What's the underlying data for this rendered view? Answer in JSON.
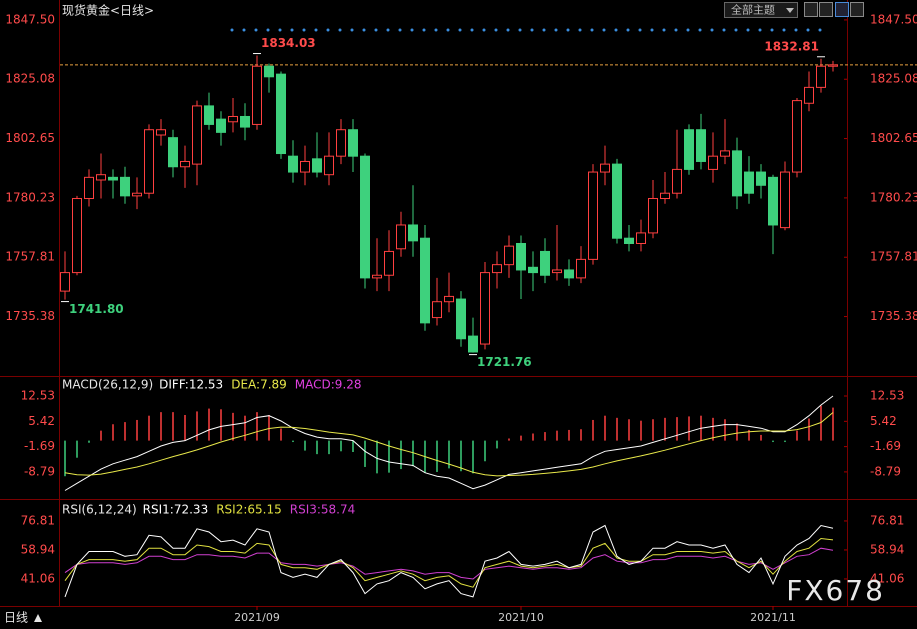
{
  "header": {
    "title": "现货黄金<日线>",
    "theme_button": "全部主题"
  },
  "footer": {
    "period": "日线",
    "watermark": "FX678"
  },
  "chart_data": [
    {
      "type": "candlestick",
      "categories": [
        null,
        null,
        null,
        null,
        null,
        null,
        null,
        null,
        null,
        null,
        null,
        null,
        null,
        null,
        null,
        null,
        "2021/09",
        null,
        null,
        null,
        null,
        null,
        null,
        null,
        null,
        null,
        null,
        null,
        null,
        null,
        null,
        null,
        null,
        null,
        null,
        null,
        null,
        null,
        "2021/10",
        null,
        null,
        null,
        null,
        null,
        null,
        null,
        null,
        null,
        null,
        null,
        null,
        null,
        null,
        null,
        null,
        null,
        null,
        null,
        null,
        "2021/11",
        null,
        null,
        null,
        null,
        null
      ],
      "open": [
        1745,
        1752,
        1780,
        1787,
        1788,
        1788,
        1781,
        1782,
        1804,
        1803,
        1792,
        1793,
        1815,
        1810,
        1809,
        1811,
        1808,
        1830,
        1827,
        1796,
        1790,
        1795,
        1789,
        1796,
        1806,
        1796,
        1750,
        1751,
        1761,
        1770,
        1765,
        1735,
        1741,
        1742,
        1728,
        1725,
        1752,
        1755,
        1763,
        1754,
        1760,
        1752,
        1753,
        1750,
        1757,
        1790,
        1793,
        1765,
        1763,
        1767,
        1780,
        1782,
        1806,
        1806,
        1791,
        1796,
        1798,
        1790,
        1790,
        1788,
        1769,
        1790,
        1816,
        1822,
        1830
      ],
      "high": [
        1760,
        1781,
        1791,
        1797,
        1791,
        1792,
        1788,
        1808,
        1810,
        1806,
        1800,
        1817,
        1820,
        1813,
        1818,
        1816,
        1834.03,
        1831,
        1828,
        1802,
        1800,
        1805,
        1805,
        1810,
        1810,
        1797,
        1765,
        1768,
        1775,
        1785,
        1770,
        1750,
        1752,
        1745,
        1735,
        1756,
        1760,
        1766,
        1766,
        1760,
        1765,
        1770,
        1757,
        1762,
        1793,
        1800,
        1795,
        1770,
        1772,
        1787,
        1790,
        1806,
        1808,
        1812,
        1805,
        1810,
        1803,
        1796,
        1793,
        1789,
        1794,
        1818,
        1828,
        1832.81,
        1832
      ],
      "low": [
        1741.8,
        1751,
        1777,
        1780,
        1780,
        1778,
        1776,
        1780,
        1800,
        1788,
        1784,
        1785,
        1806,
        1800,
        1805,
        1802,
        1806,
        1820,
        1795,
        1786,
        1785,
        1788,
        1785,
        1793,
        1790,
        1746,
        1745,
        1745,
        1758,
        1758,
        1730,
        1732,
        1737,
        1724,
        1721.76,
        1723,
        1746,
        1750,
        1742,
        1745,
        1748,
        1749,
        1747,
        1748,
        1755,
        1785,
        1763,
        1760,
        1760,
        1765,
        1778,
        1780,
        1789,
        1791,
        1786,
        1793,
        1776,
        1778,
        1780,
        1759,
        1768,
        1788,
        1813,
        1820,
        1828
      ],
      "close": [
        1752,
        1780,
        1788,
        1789,
        1787,
        1781,
        1782,
        1806,
        1806,
        1792,
        1794,
        1815,
        1808,
        1805,
        1811,
        1807,
        1830,
        1826,
        1797,
        1790,
        1794,
        1790,
        1796,
        1806,
        1796,
        1750,
        1751,
        1760,
        1770,
        1764,
        1733,
        1741,
        1743,
        1727,
        1722,
        1752,
        1755,
        1762,
        1753,
        1752,
        1751,
        1753,
        1750,
        1757,
        1790,
        1793,
        1765,
        1763,
        1767,
        1780,
        1782,
        1791,
        1791,
        1794,
        1796,
        1798,
        1781,
        1782,
        1785,
        1770,
        1790,
        1817,
        1822,
        1830,
        1830.5
      ],
      "up_color": "#ff4040",
      "down_color": "#3ed17d",
      "last_line_color": "#e8a040",
      "ylim": [
        1713.3,
        1852
      ],
      "yticks": [
        {
          "value": 1847.5,
          "label": "1847.50"
        },
        1825.08,
        1802.65,
        1780.23,
        1757.81,
        1735.38
      ],
      "annotations": [
        "1834.03",
        "1832.81",
        "1741.80",
        "1721.76"
      ]
    },
    {
      "type": "macd",
      "title": "MACD(26,12,9)",
      "series": [
        {
          "name": "DIFF:12.53",
          "color": "#ffffff",
          "values": [
            -14,
            -12,
            -10,
            -8,
            -6.5,
            -5.5,
            -4.5,
            -3,
            -1.5,
            -0.5,
            0,
            1.5,
            3,
            4,
            4.5,
            5,
            6.5,
            7,
            5.5,
            3.5,
            2,
            1,
            0.5,
            0.5,
            0,
            -3,
            -5,
            -6,
            -6.5,
            -7,
            -9,
            -10,
            -10.5,
            -12,
            -13.5,
            -12.5,
            -11,
            -9.5,
            -9,
            -8.5,
            -8,
            -7.5,
            -7,
            -6.5,
            -4.5,
            -3,
            -2.5,
            -2,
            -1.5,
            -0.5,
            0.5,
            1.5,
            2.5,
            3.5,
            4,
            4.5,
            4.5,
            4,
            3.5,
            2.5,
            2.5,
            4.5,
            7,
            10,
            12.53
          ]
        },
        {
          "name": "DEA:7.89",
          "color": "#e8e84a",
          "values": [
            -9,
            -9.6,
            -9.7,
            -9.4,
            -8.8,
            -8.1,
            -7.4,
            -6.5,
            -5.5,
            -4.5,
            -3.6,
            -2.6,
            -1.5,
            -0.4,
            0.6,
            1.5,
            2.5,
            3.4,
            3.8,
            3.7,
            3.4,
            2.9,
            2.4,
            2,
            1.6,
            0.7,
            -0.4,
            -1.5,
            -2.5,
            -3.4,
            -4.5,
            -5.6,
            -6.6,
            -7.7,
            -8.9,
            -9.6,
            -9.9,
            -9.8,
            -9.7,
            -9.5,
            -9.2,
            -8.9,
            -8.5,
            -8.1,
            -7.4,
            -6.5,
            -5.7,
            -5,
            -4.3,
            -3.5,
            -2.7,
            -1.8,
            -0.9,
            0,
            0.8,
            1.5,
            2.1,
            2.5,
            2.7,
            2.7,
            2.7,
            3.1,
            3.9,
            5.1,
            7.89
          ]
        },
        {
          "name": "MACD:9.28",
          "color": "#e040e0",
          "up_color": "#ff4040",
          "down_color": "#3ed17d",
          "bars": true,
          "values": [
            -10,
            -4.8,
            -0.6,
            2.8,
            4.6,
            5.2,
            5.8,
            7,
            8,
            8,
            7.2,
            8.2,
            9,
            8.8,
            7.8,
            7,
            8,
            7.2,
            3.4,
            -0.4,
            -2.8,
            -3.8,
            -3.8,
            -3,
            -3.2,
            -7.4,
            -9.2,
            -9,
            -8,
            -7.2,
            -9,
            -8.8,
            -7.8,
            -8.6,
            -9.2,
            -5.8,
            -2.2,
            0.6,
            1.4,
            2,
            2.4,
            2.8,
            3,
            3.2,
            5.8,
            7,
            6.4,
            6,
            5.6,
            6,
            6.4,
            6.6,
            6.8,
            7,
            6.4,
            6,
            4.8,
            3,
            1.6,
            -0.4,
            -0.4,
            2.8,
            6.2,
            9.8,
            9.28
          ]
        }
      ],
      "ylim": [
        -15.84,
        17.87
      ],
      "yticks": [
        12.53,
        5.42,
        -1.69,
        -8.79
      ]
    },
    {
      "type": "rsi",
      "title": "RSI(6,12,24)",
      "series": [
        {
          "name": "RSI1:72.33",
          "color": "#ffffff",
          "values": [
            30,
            50,
            58,
            58,
            58,
            55,
            56,
            68,
            67,
            60,
            60,
            72,
            70,
            64,
            65,
            62,
            72,
            70,
            45,
            42,
            44,
            42,
            50,
            53,
            45,
            32,
            38,
            40,
            45,
            42,
            35,
            38,
            40,
            32,
            30,
            52,
            54,
            58,
            50,
            49,
            50,
            52,
            48,
            50,
            70,
            74,
            55,
            50,
            52,
            60,
            60,
            64,
            62,
            62,
            60,
            62,
            50,
            45,
            54,
            38,
            55,
            62,
            66,
            74,
            72.33
          ]
        },
        {
          "name": "RSI2:65.15",
          "color": "#e0e040",
          "values": [
            40,
            50,
            53,
            53,
            53,
            52,
            53,
            60,
            60,
            56,
            56,
            62,
            61,
            58,
            58,
            57,
            63,
            62,
            50,
            48,
            48,
            47,
            50,
            52,
            48,
            40,
            42,
            44,
            46,
            44,
            40,
            42,
            43,
            38,
            36,
            48,
            50,
            52,
            49,
            48,
            49,
            50,
            48,
            49,
            60,
            63,
            54,
            52,
            52,
            56,
            56,
            58,
            58,
            58,
            57,
            58,
            52,
            48,
            52,
            44,
            52,
            58,
            60,
            66,
            65.15
          ]
        },
        {
          "name": "RSI3:58.74",
          "color": "#d040d0",
          "values": [
            45,
            50,
            51,
            51,
            51,
            50,
            51,
            55,
            55,
            53,
            53,
            56,
            56,
            55,
            55,
            54,
            57,
            57,
            51,
            50,
            50,
            49,
            50,
            51,
            49,
            44,
            45,
            46,
            47,
            46,
            44,
            45,
            45,
            42,
            41,
            47,
            48,
            49,
            48,
            47,
            48,
            48,
            47,
            48,
            54,
            56,
            52,
            51,
            51,
            53,
            53,
            55,
            55,
            55,
            54,
            55,
            52,
            50,
            51,
            47,
            51,
            55,
            56,
            60,
            58.74
          ]
        }
      ],
      "ylim": [
        25,
        88.5
      ],
      "yticks": [
        76.81,
        58.94,
        41.06
      ]
    }
  ]
}
